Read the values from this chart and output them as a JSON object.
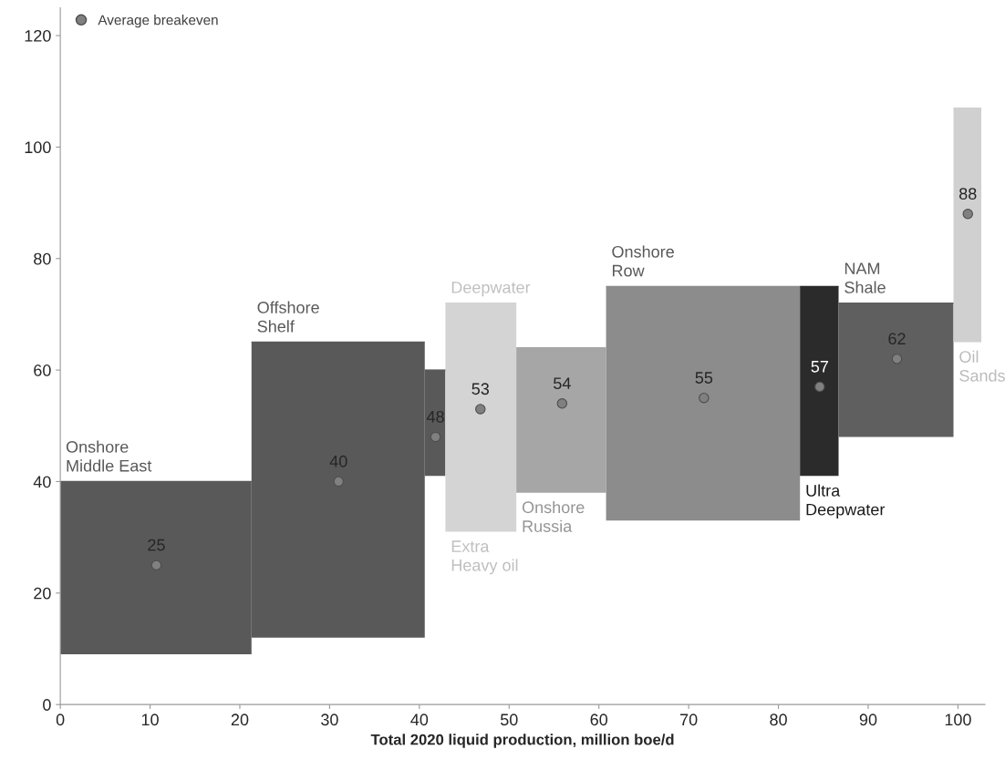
{
  "chart_data": {
    "type": "bar",
    "xlabel": "Total 2020 liquid production, million boe/d",
    "xlim": [
      0,
      103
    ],
    "xticks": [
      0,
      10,
      20,
      30,
      40,
      50,
      60,
      70,
      80,
      90,
      100
    ],
    "ylim": [
      0,
      125
    ],
    "yticks": [
      0,
      20,
      40,
      60,
      80,
      100,
      120
    ],
    "grid": false,
    "legend": "top left",
    "series": [
      {
        "x": [
          10.65,
          30.95,
          41.75,
          46.85,
          55.8,
          71.6,
          84.55,
          93.1,
          101.05
        ],
        "xerrors": [
          10.65,
          9.65,
          1.15,
          3.95,
          5.0,
          10.8,
          2.15,
          6.4,
          1.55
        ],
        "base": [
          9,
          12,
          41,
          31,
          38,
          33,
          41,
          48,
          65
        ],
        "values": [
          31,
          53,
          19,
          41,
          26,
          42,
          34,
          24,
          42
        ],
        "colors": [
          "#595959",
          "#595959",
          "#595959",
          "#d4d4d4",
          "#a6a6a6",
          "#8c8c8c",
          "#2b2b2b",
          "#5f5f5f",
          "#d0d0d0"
        ]
      },
      {
        "type": "scatter",
        "name": "Average breakeven",
        "color": "#808080",
        "marker": "circle",
        "x": [
          10.7,
          31.0,
          41.8,
          46.8,
          55.9,
          71.7,
          84.6,
          93.2,
          101.1
        ],
        "values": [
          25,
          40,
          48,
          53,
          54,
          55,
          57,
          62,
          88
        ],
        "value_labels": [
          "25",
          "40",
          "48",
          "53",
          "54",
          "55",
          "57",
          "62",
          "88"
        ]
      }
    ],
    "annotations": [
      {
        "text": "Onshore\nMiddle East",
        "x": 10.65,
        "y": 40
      },
      {
        "text": "Offshore\nShelf",
        "x": 30.95,
        "y": 65
      },
      {
        "text": "Extra\nHeavy oil",
        "x": 46.85,
        "y": 31
      },
      {
        "text": "Deepwater",
        "x": 46.85,
        "y": 72
      },
      {
        "text": "Onshore\nRussia",
        "x": 55.8,
        "y": 38
      },
      {
        "text": "Onshore\nRow",
        "x": 71.6,
        "y": 75
      },
      {
        "text": "Ultra\nDeepwater",
        "x": 84.55,
        "y": 41
      },
      {
        "text": "NAM\nShale",
        "x": 93.1,
        "y": 72
      },
      {
        "text": "Oil\nSands",
        "x": 101.05,
        "y": 65
      }
    ]
  }
}
